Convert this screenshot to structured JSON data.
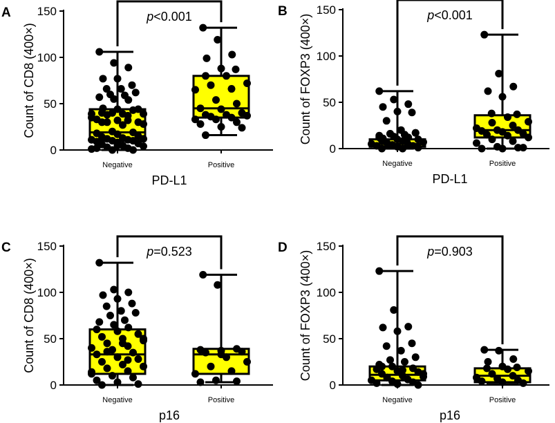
{
  "chart_data": [
    {
      "type": "box",
      "panel_label": "A",
      "ylabel": "Count of CD8 (400×)",
      "xlabel": "PD-L1",
      "ylim": [
        0,
        150
      ],
      "yticks": [
        0,
        50,
        100,
        150
      ],
      "categories": [
        "Negative",
        "Positive"
      ],
      "p_value": "<0.001",
      "boxes": [
        {
          "min": 0,
          "q1": 10,
          "median": 19,
          "q3": 44,
          "max": 106
        },
        {
          "min": 16,
          "q1": 35,
          "median": 45,
          "q3": 80,
          "max": 132
        }
      ],
      "points": [
        [
          106,
          94,
          89,
          77,
          77,
          70,
          66,
          66,
          62,
          60,
          59,
          57,
          55,
          54,
          45,
          44,
          44,
          40,
          39,
          39,
          38,
          37,
          39,
          40,
          43,
          33,
          32,
          30,
          30,
          27,
          28,
          30,
          32,
          35,
          20,
          19,
          18,
          17,
          15,
          14,
          13,
          12,
          12,
          11,
          11,
          10,
          10,
          9,
          8,
          7,
          6,
          5,
          4,
          3,
          2,
          1,
          0,
          0,
          2,
          5
        ],
        [
          132,
          119,
          103,
          99,
          88,
          87,
          80,
          80,
          72,
          70,
          66,
          65,
          54,
          50,
          45,
          44,
          40,
          38,
          38,
          37,
          36,
          35,
          33,
          33,
          30,
          28,
          25,
          24,
          16
        ]
      ]
    },
    {
      "type": "box",
      "panel_label": "B",
      "ylabel": "Count of FOXP3 (400×)",
      "xlabel": "PD-L1",
      "ylim": [
        0,
        150
      ],
      "yticks": [
        0,
        50,
        100,
        150
      ],
      "categories": [
        "Negative",
        "Positive"
      ],
      "p_value": "<0.001",
      "boxes": [
        {
          "min": 0,
          "q1": 2,
          "median": 5,
          "q3": 10,
          "max": 62
        },
        {
          "min": 0,
          "q1": 12,
          "median": 20,
          "q3": 36,
          "max": 123
        }
      ],
      "points": [
        [
          62,
          53,
          48,
          45,
          40,
          39,
          30,
          20,
          17,
          16,
          15,
          14,
          13,
          12,
          11,
          10,
          10,
          9,
          8,
          7,
          6,
          5,
          5,
          4,
          3,
          3,
          2,
          1,
          0,
          0,
          17,
          16,
          15,
          12
        ],
        [
          123,
          81,
          67,
          62,
          56,
          37,
          38,
          34,
          29,
          28,
          25,
          22,
          20,
          20,
          19,
          18,
          16,
          15,
          14,
          12,
          10,
          8,
          6,
          2,
          1,
          0,
          0,
          1
        ]
      ]
    },
    {
      "type": "box",
      "panel_label": "C",
      "ylabel": "Count of CD8 (400×)",
      "xlabel": "p16",
      "ylim": [
        0,
        150
      ],
      "yticks": [
        0,
        50,
        100,
        150
      ],
      "categories": [
        "Negative",
        "Positive"
      ],
      "p_value": "=0.523",
      "boxes": [
        {
          "min": 0,
          "q1": 12,
          "median": 33,
          "q3": 60,
          "max": 132
        },
        {
          "min": 3,
          "q1": 12,
          "median": 33,
          "q3": 39,
          "max": 119
        }
      ],
      "points": [
        [
          132,
          103,
          100,
          97,
          93,
          88,
          85,
          80,
          78,
          75,
          70,
          68,
          65,
          62,
          60,
          58,
          55,
          52,
          50,
          48,
          45,
          42,
          40,
          38,
          35,
          33,
          30,
          28,
          25,
          22,
          20,
          18,
          15,
          12,
          10,
          8,
          5,
          3,
          1,
          0,
          45,
          50,
          36,
          27,
          14
        ],
        [
          119,
          108,
          39,
          38,
          37,
          36,
          35,
          30,
          25,
          20,
          15,
          12,
          5,
          4,
          3,
          33
        ]
      ]
    },
    {
      "type": "box",
      "panel_label": "D",
      "ylabel": "Count of FOXP3 (400×)",
      "xlabel": "p16",
      "ylim": [
        0,
        150
      ],
      "yticks": [
        0,
        50,
        100,
        150
      ],
      "categories": [
        "Negative",
        "Positive"
      ],
      "p_value": "=0.903",
      "boxes": [
        {
          "min": 0,
          "q1": 5,
          "median": 11,
          "q3": 20,
          "max": 123
        },
        {
          "min": 2,
          "q1": 3,
          "median": 10,
          "q3": 18,
          "max": 38
        }
      ],
      "points": [
        [
          123,
          81,
          63,
          62,
          58,
          45,
          42,
          37,
          30,
          27,
          25,
          22,
          20,
          18,
          17,
          15,
          14,
          12,
          10,
          9,
          8,
          6,
          5,
          4,
          3,
          2,
          1,
          0,
          20,
          16,
          12,
          8
        ],
        [
          38,
          37,
          28,
          25,
          20,
          19,
          18,
          17,
          15,
          12,
          10,
          8,
          7,
          5,
          4,
          3,
          2
        ]
      ]
    }
  ],
  "colors": {
    "box_fill": "#ffff00",
    "stroke": "#000000"
  }
}
